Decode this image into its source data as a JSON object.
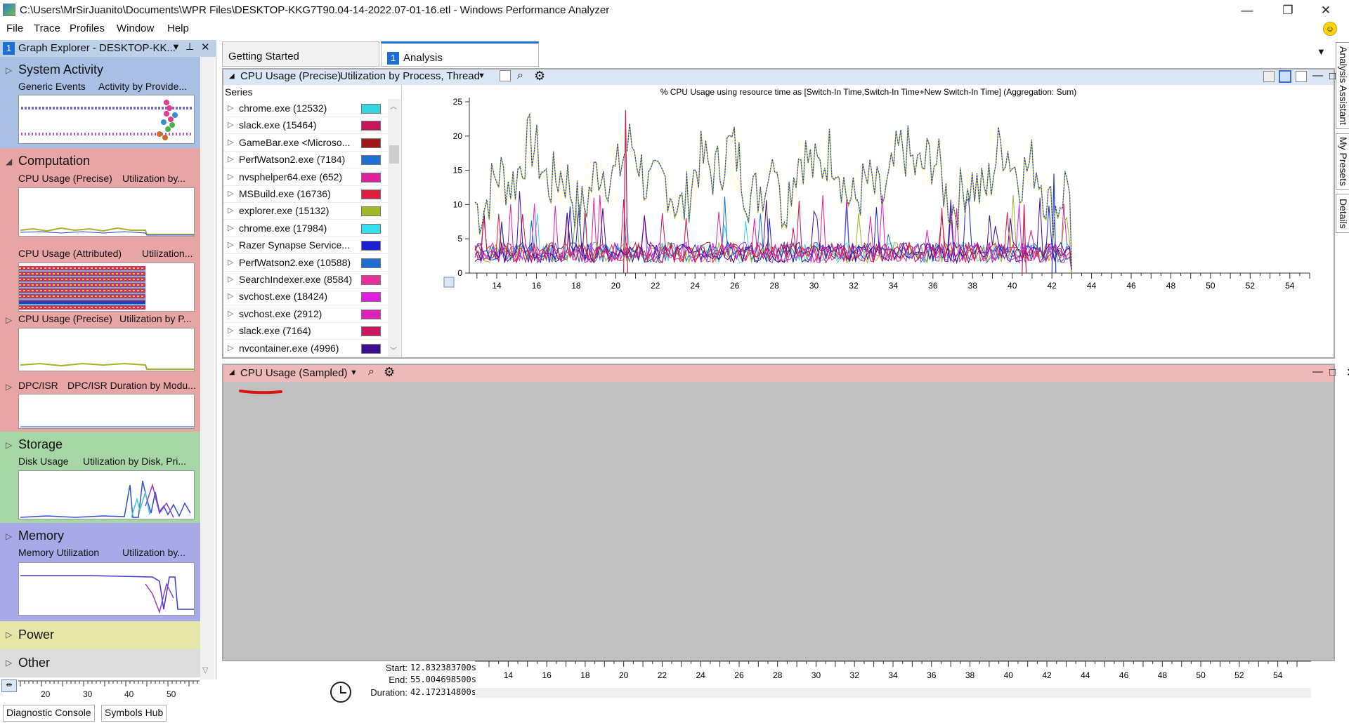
{
  "window": {
    "title": "C:\\Users\\MrSirJuanito\\Documents\\WPR Files\\DESKTOP-KKG7T90.04-14-2022.07-01-16.etl - Windows Performance Analyzer",
    "minimize": "—",
    "maximize": "❐",
    "close": "✕"
  },
  "menu": [
    "File",
    "Trace",
    "Profiles",
    "Window",
    "Help"
  ],
  "graph_explorer": {
    "num": "1",
    "title": "Graph Explorer - DESKTOP-KK...",
    "sections": [
      {
        "name": "System Activity",
        "color": "#a9bfe3",
        "graphs": [
          {
            "a": "Generic Events",
            "b": "Activity by Provide..."
          }
        ]
      },
      {
        "name": "Computation",
        "color": "#e8a5a5",
        "graphs": [
          {
            "a": "CPU Usage (Precise)",
            "b": "Utilization by..."
          },
          {
            "a": "CPU Usage (Attributed)",
            "b": "Utilization..."
          },
          {
            "a": "CPU Usage (Precise)",
            "b": "Utilization by P..."
          },
          {
            "a": "DPC/ISR",
            "b": "DPC/ISR Duration by Modu..."
          }
        ]
      },
      {
        "name": "Storage",
        "color": "#a6d6a6",
        "graphs": [
          {
            "a": "Disk Usage",
            "b": "Utilization by Disk, Pri..."
          }
        ]
      },
      {
        "name": "Memory",
        "color": "#a9a9e8",
        "graphs": [
          {
            "a": "Memory Utilization",
            "b": "Utilization by..."
          }
        ]
      },
      {
        "name": "Power",
        "color": "#e6e6a8",
        "graphs": []
      },
      {
        "name": "Other",
        "color": "#dcdcdc",
        "graphs": []
      }
    ],
    "axis_ticks": [
      "20",
      "30",
      "40",
      "50"
    ]
  },
  "bottom_buttons": [
    "Diagnostic Console",
    "Symbols Hub"
  ],
  "tabs": [
    {
      "label": "Getting Started",
      "num": ""
    },
    {
      "label": "Analysis",
      "num": "1"
    }
  ],
  "panel1": {
    "title": "CPU Usage (Precise)",
    "preset": "Utilization by Process, Thread",
    "series_header": "Series",
    "series": [
      {
        "name": "chrome.exe (12532)",
        "color": "#36d3e0"
      },
      {
        "name": "slack.exe (15464)",
        "color": "#c8145a"
      },
      {
        "name": "GameBar.exe <Microso...",
        "color": "#a01818"
      },
      {
        "name": "PerfWatson2.exe (7184)",
        "color": "#1e6fd0"
      },
      {
        "name": "nvsphelper64.exe (652)",
        "color": "#e0209a"
      },
      {
        "name": "MSBuild.exe (16736)",
        "color": "#e01c40"
      },
      {
        "name": "explorer.exe (15132)",
        "color": "#9ab828"
      },
      {
        "name": "chrome.exe (17984)",
        "color": "#36e0ec"
      },
      {
        "name": "Razer Synapse Service...",
        "color": "#1c20d0"
      },
      {
        "name": "PerfWatson2.exe (10588)",
        "color": "#1e6fd0"
      },
      {
        "name": "SearchIndexer.exe (8584)",
        "color": "#e8309c"
      },
      {
        "name": "svchost.exe (18424)",
        "color": "#e020e0"
      },
      {
        "name": "svchost.exe (2912)",
        "color": "#e020b8"
      },
      {
        "name": "slack.exe (7164)",
        "color": "#c8145a"
      },
      {
        "name": "nvcontainer.exe (4996)",
        "color": "#400e90"
      }
    ]
  },
  "panel2": {
    "title": "CPU Usage (Sampled)"
  },
  "time": {
    "start_label": "Start:",
    "start": "12.832383700s",
    "end_label": "End:",
    "end": "55.004698500s",
    "duration_label": "Duration:",
    "duration": "42.172314800s"
  },
  "right_dock": [
    "Analysis Assistant",
    "My Presets",
    "Details"
  ],
  "chart_data": {
    "type": "line",
    "title": "% CPU Usage using resource time as [Switch-In Time,Switch-In Time+New Switch-In Time] (Aggregation: Sum)",
    "xlabel": "",
    "ylabel": "",
    "xlim": [
      12.83,
      55.0
    ],
    "ylim": [
      0,
      25
    ],
    "x_ticks": [
      "14",
      "16",
      "18",
      "20",
      "22",
      "24",
      "26",
      "28",
      "30",
      "32",
      "34",
      "36",
      "38",
      "40",
      "42",
      "44",
      "46",
      "48",
      "50",
      "52",
      "54"
    ],
    "y_ticks": [
      "0",
      "5",
      "10",
      "15",
      "20",
      "25"
    ],
    "data_end_x": 43.0,
    "series": [
      {
        "name": "Total (olive)",
        "color": "#a8b02a",
        "summary": "oscillates between ~8 and ~20 from 13 to 43 s, peaks ~23 at 28 s"
      },
      {
        "name": "Total (blue dotted)",
        "color": "#2040d0",
        "summary": "tracks olive series, ~10–21"
      },
      {
        "name": "Per-process",
        "color": "#e0209a",
        "summary": "mostly 0–5, spikes to ~24 at 20.5 s, ~10 at 40.5 s, ~14 at 42 s"
      }
    ]
  }
}
